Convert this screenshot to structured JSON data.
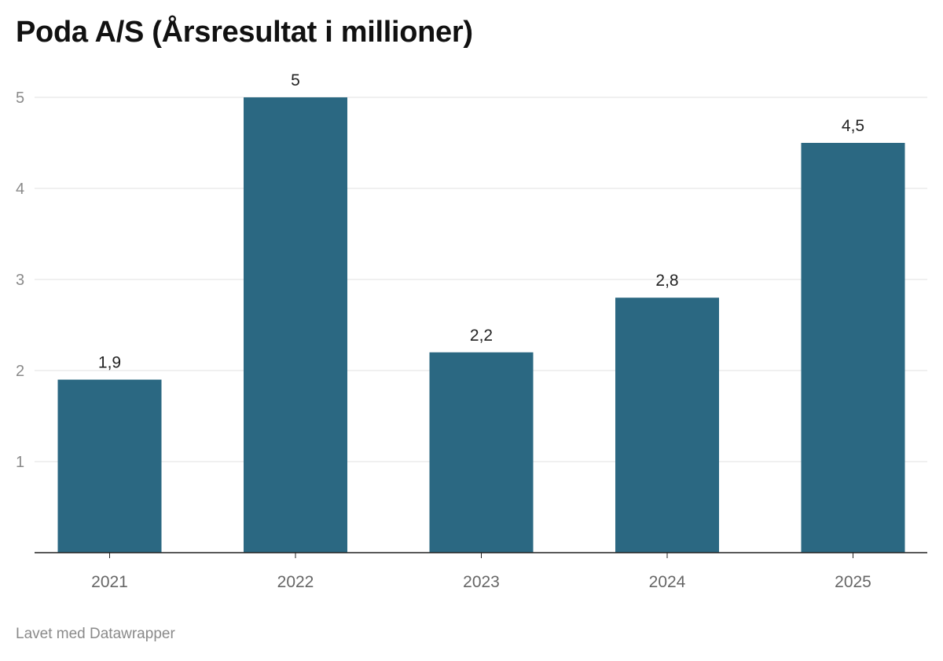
{
  "chart_data": {
    "type": "bar",
    "title": "Poda A/S (Årsresultat i millioner)",
    "categories": [
      "2021",
      "2022",
      "2023",
      "2024",
      "2025"
    ],
    "values": [
      1.9,
      5,
      2.2,
      2.8,
      4.5
    ],
    "value_labels": [
      "1,9",
      "5",
      "2,2",
      "2,8",
      "4,5"
    ],
    "y_ticks": [
      1,
      2,
      3,
      4,
      5
    ],
    "ylim": [
      0,
      5
    ],
    "grid": true,
    "legend": "none",
    "xlabel": "",
    "ylabel": "",
    "bar_color": "#2b6882"
  },
  "footer": {
    "credit": "Lavet med Datawrapper"
  }
}
